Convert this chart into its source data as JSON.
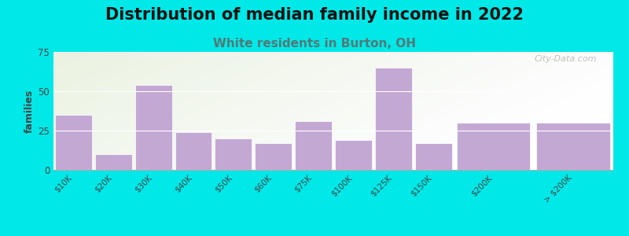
{
  "title": "Distribution of median family income in 2022",
  "subtitle": "White residents in Burton, OH",
  "categories": [
    "$10K",
    "$20K",
    "$30K",
    "$40K",
    "$50K",
    "$60K",
    "$75K",
    "$100K",
    "$125K",
    "$150K",
    "$200K",
    "> $200K"
  ],
  "values": [
    35,
    10,
    54,
    24,
    20,
    17,
    31,
    19,
    65,
    17,
    30,
    30
  ],
  "bar_widths": [
    1,
    1,
    1,
    1,
    1,
    1,
    1,
    1,
    1,
    1,
    2,
    2
  ],
  "bar_color": "#c4a8d4",
  "background_outer": "#00e8e8",
  "ylabel": "families",
  "ylim": [
    0,
    75
  ],
  "yticks": [
    0,
    25,
    50,
    75
  ],
  "title_fontsize": 15,
  "subtitle_fontsize": 11,
  "subtitle_color": "#557777",
  "watermark": "City-Data.com"
}
